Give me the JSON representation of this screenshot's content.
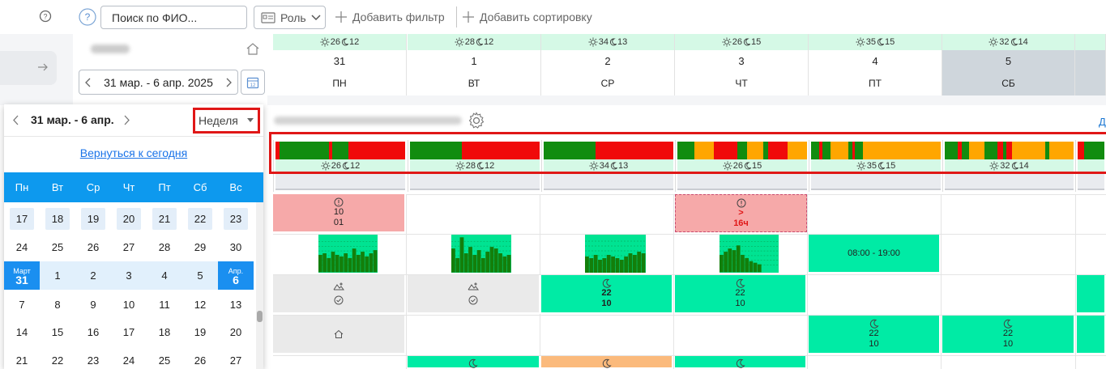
{
  "toolbar": {
    "help_icon": "question-circle-icon",
    "search_placeholder": "Поиск по ФИО...",
    "role_label": "Роль",
    "add_filter": "Добавить фильтр",
    "add_sort": "Добавить сортировку"
  },
  "period": {
    "range": "31 мар. - 6 апр. 2025"
  },
  "days": [
    {
      "num": "31",
      "name": "ПН",
      "hi": "26",
      "lo": "12"
    },
    {
      "num": "1",
      "name": "ВТ",
      "hi": "28",
      "lo": "12"
    },
    {
      "num": "2",
      "name": "СР",
      "hi": "34",
      "lo": "13"
    },
    {
      "num": "3",
      "name": "ЧТ",
      "hi": "26",
      "lo": "15"
    },
    {
      "num": "4",
      "name": "ПТ",
      "hi": "35",
      "lo": "15"
    },
    {
      "num": "5",
      "name": "СБ",
      "hi": "32",
      "lo": "14"
    }
  ],
  "side_link": "Д",
  "cells": {
    "r1_mon_a": "10",
    "r1_mon_b": "01",
    "r1_thu_a": ">",
    "r1_thu_b": "16ч",
    "r2_fri": "08:00 - 19:00",
    "r3_wed_a": "22",
    "r3_wed_b": "10",
    "r3_thu_a": "22",
    "r3_thu_b": "10",
    "r4_fri_a": "22",
    "r4_fri_b": "10",
    "r4_sat_a": "22",
    "r4_sat_b": "10"
  },
  "calendar": {
    "range": "31 мар. - 6 апр.",
    "view": "Неделя",
    "today_link": "Вернуться к сегодня",
    "weekdays": [
      "Пн",
      "Вт",
      "Ср",
      "Чт",
      "Пт",
      "Сб",
      "Вс"
    ],
    "week1": [
      "17",
      "18",
      "19",
      "20",
      "21",
      "22",
      "23"
    ],
    "week2": [
      "24",
      "25",
      "26",
      "27",
      "28",
      "29",
      "30"
    ],
    "week3_start_month": "Март",
    "week3_start_day": "31",
    "week3_mid": [
      "1",
      "2",
      "3",
      "4",
      "5"
    ],
    "week3_end_month": "Апр.",
    "week3_end_day": "6",
    "week4": [
      "7",
      "8",
      "9",
      "10",
      "11",
      "12",
      "13"
    ],
    "week5": [
      "14",
      "15",
      "16",
      "17",
      "18",
      "19",
      "20"
    ],
    "week6": [
      "21",
      "22",
      "23",
      "24",
      "25",
      "26",
      "27"
    ]
  },
  "colors": {
    "green": "#00eba5",
    "red": "#f6a9a9",
    "gray": "#eaeaea",
    "orange": "#fbba7c",
    "accent": "#0d99ee",
    "frame": "#e01717"
  }
}
